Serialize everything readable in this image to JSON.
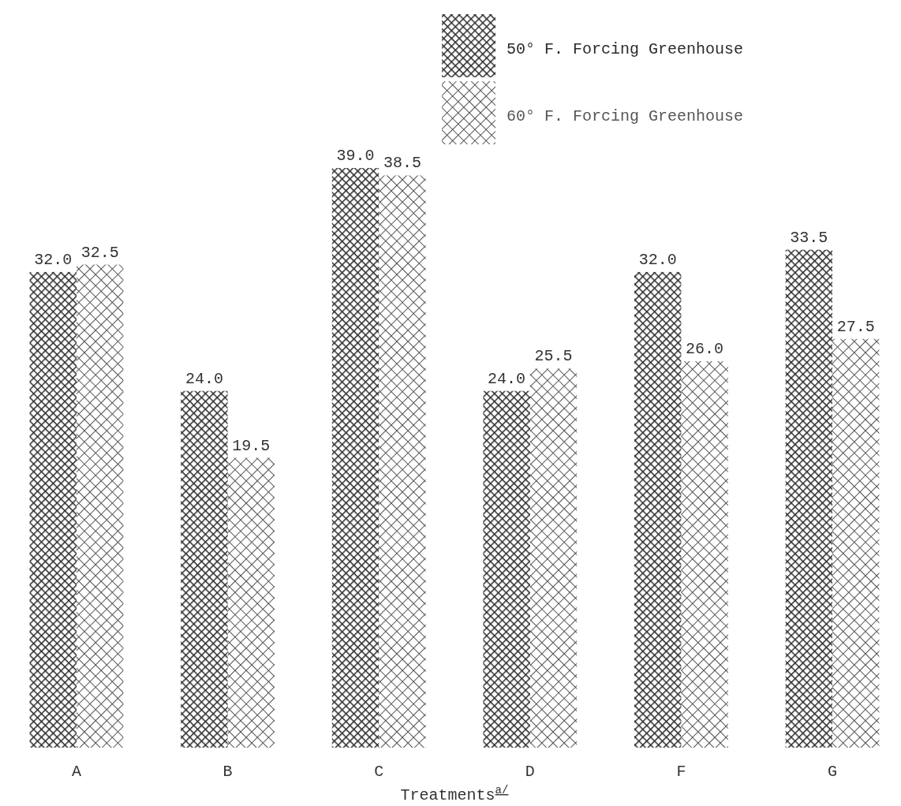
{
  "chart_data": {
    "type": "bar",
    "xlabel": "Treatments$^{a/}$",
    "categories": [
      "A",
      "B",
      "C",
      "D",
      "F",
      "G"
    ],
    "series": [
      {
        "name": "50° F. Forcing Greenhouse",
        "color": "#2a2a2a",
        "values": [
          32.0,
          24.0,
          39.0,
          24.0,
          32.0,
          33.5
        ],
        "value_labels": [
          "32.0",
          "24.0",
          "39.0",
          "24.0",
          "32.0",
          "33.5"
        ]
      },
      {
        "name": "60° F. Forcing Greenhouse",
        "color": "#555555",
        "values": [
          32.5,
          19.5,
          38.5,
          25.5,
          26.0,
          27.5
        ],
        "value_labels": [
          "32.5",
          "19.5",
          "38.5",
          "25.5",
          "26.0",
          "27.5"
        ]
      }
    ],
    "legend": "top right"
  }
}
